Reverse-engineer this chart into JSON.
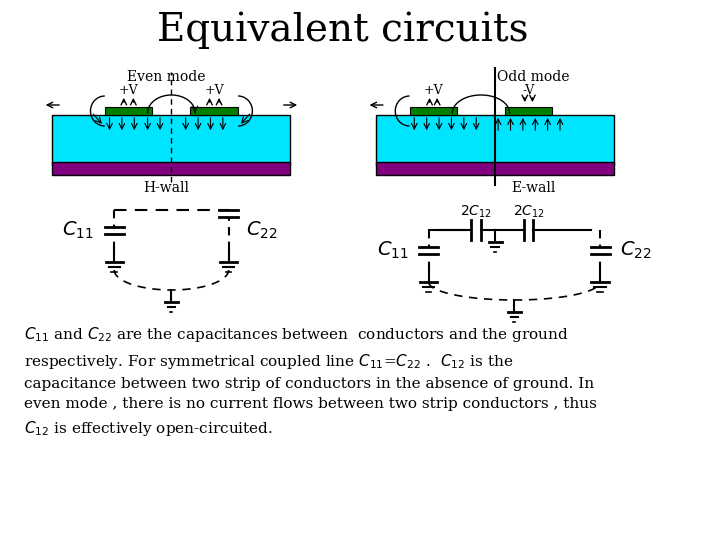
{
  "title": "Equivalent circuits",
  "title_fontsize": 28,
  "bg_color": "#ffffff",
  "cyan_color": "#00E5FF",
  "purple_color": "#800080",
  "green_color": "#008000",
  "even_mode_label": "Even mode",
  "odd_mode_label": "Odd mode",
  "hwall_label": "H-wall",
  "ewall_label": "E-wall",
  "body_fontsize": 11,
  "text_color": "#000000"
}
